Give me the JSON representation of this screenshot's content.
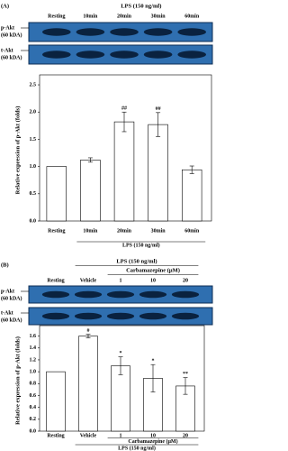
{
  "chart_data": [
    {
      "type": "bar",
      "panel": "(A)",
      "blot_header": [
        "LPS (150 ng/ml)"
      ],
      "lanes": [
        "Resting",
        "10min",
        "20min",
        "30min",
        "60min"
      ],
      "blot_labels": [
        [
          "p-Akt",
          "(60 kDA)"
        ],
        [
          "t-Akt",
          "(60 kDA)"
        ]
      ],
      "ylabel": "Relative expression of p-Akt (folds)",
      "categories": [
        "Resting",
        "10min",
        "20min",
        "30min",
        "60min"
      ],
      "values": [
        1.0,
        1.12,
        1.82,
        1.77,
        0.94
      ],
      "errors": [
        0,
        0.04,
        0.18,
        0.22,
        0.07
      ],
      "annotations": [
        null,
        null,
        "##",
        "##",
        null
      ],
      "xlabels": [
        "LPS (150 ng/ml)"
      ],
      "color": "#ffffff",
      "ylim": [
        0,
        2.6
      ],
      "yticks": [
        {
          "value": 0,
          "label": "0.0"
        },
        0.5,
        {
          "value": 1,
          "label": "1.0"
        },
        1.5,
        {
          "value": 2,
          "label": "2.0"
        },
        2.5
      ]
    },
    {
      "type": "bar",
      "panel": "(B)",
      "blot_header": [
        "LPS (150 ng/ml)",
        "Carbamazepine (μM)"
      ],
      "lanes": [
        "Resting",
        "Vehicle",
        "1",
        "10",
        "20"
      ],
      "blot_labels": [
        [
          "p-Akt",
          "(60 kDA)"
        ],
        [
          "t-Akt",
          "(60 kDA)"
        ]
      ],
      "ylabel": "Relative expression of p-Akt (folds)",
      "categories": [
        "Resting",
        "Vehicle",
        "1",
        "10",
        "20"
      ],
      "values": [
        1.0,
        1.6,
        1.1,
        0.89,
        0.76
      ],
      "errors": [
        0,
        0.03,
        0.15,
        0.23,
        0.14
      ],
      "annotations": [
        null,
        "#",
        "*",
        "*",
        "**"
      ],
      "xlabels": [
        "Carbamazepine (μM)",
        "LPS (150 ng/ml)"
      ],
      "color": "#ffffff",
      "ylim": [
        0,
        1.7
      ],
      "yticks": [
        {
          "value": 0,
          "label": "0.0"
        },
        0.2,
        0.4,
        0.6,
        0.8,
        {
          "value": 1,
          "label": "1.0"
        },
        1.2,
        1.4,
        1.6
      ]
    }
  ]
}
